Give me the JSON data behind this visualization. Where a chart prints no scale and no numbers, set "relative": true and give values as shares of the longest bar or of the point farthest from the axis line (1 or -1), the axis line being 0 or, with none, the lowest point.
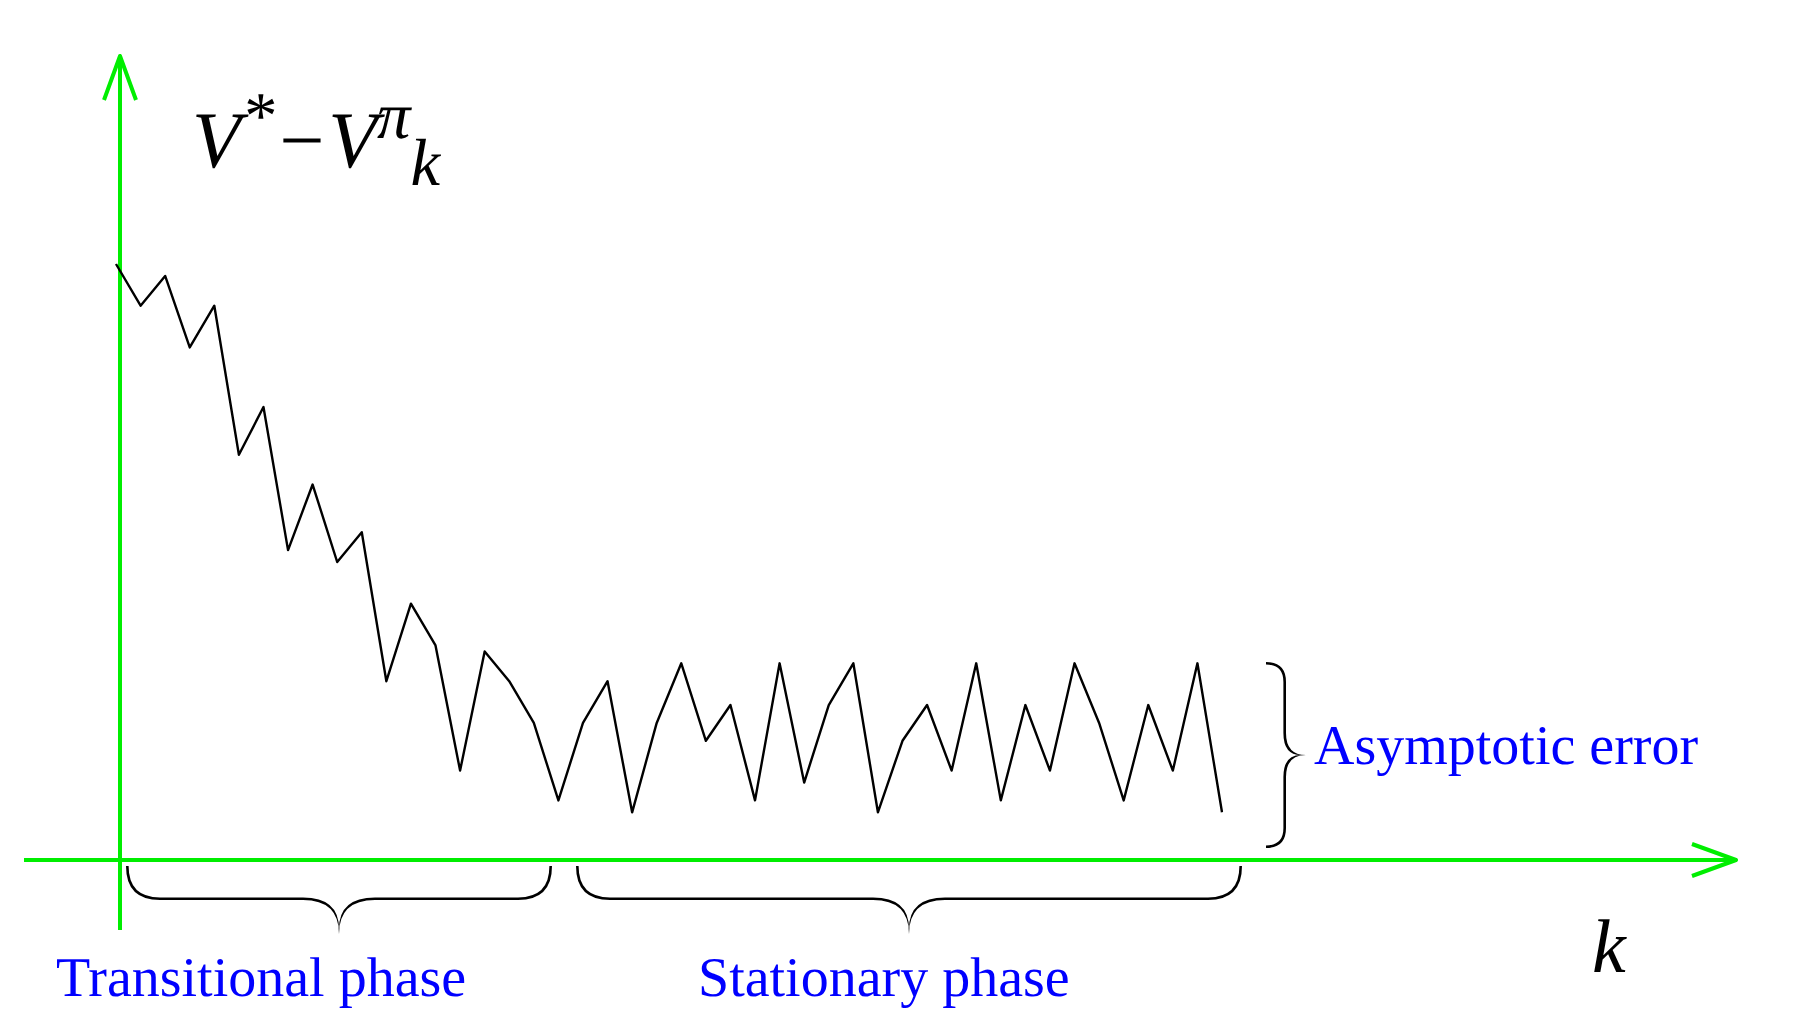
{
  "chart_data": {
    "type": "line",
    "relative": true,
    "ylabel": "V$^{*}$−V$^{π}$$_{k}$",
    "xlabel": "k",
    "marker": "none",
    "line_style": "solid",
    "legend": false,
    "categories": [
      null,
      null,
      null,
      null,
      null,
      null,
      null,
      null,
      null,
      null,
      null,
      null,
      null,
      null,
      null,
      null,
      null,
      null,
      null,
      null,
      null,
      null,
      null,
      null,
      null,
      null,
      null,
      null,
      null,
      null,
      null,
      null,
      null,
      null,
      null,
      null,
      null,
      null,
      null,
      null,
      null,
      null,
      null,
      null,
      null,
      null
    ],
    "series": [
      {
        "color": "#000000",
        "values": [
          1.0,
          0.93,
          0.98,
          0.86,
          0.93,
          0.68,
          0.76,
          0.52,
          0.63,
          0.5,
          0.55,
          0.3,
          0.43,
          0.36,
          0.15,
          0.35,
          0.3,
          0.23,
          0.1,
          0.23,
          0.3,
          0.08,
          0.23,
          0.33,
          0.2,
          0.26,
          0.1,
          0.33,
          0.13,
          0.26,
          0.33,
          0.08,
          0.2,
          0.26,
          0.15,
          0.33,
          0.1,
          0.26,
          0.15,
          0.33,
          0.23,
          0.1,
          0.26,
          0.15,
          0.33,
          0.08
        ]
      }
    ],
    "annotations": [
      "Transitional phase",
      "Stationary phase",
      "Asymptotic error"
    ]
  }
}
